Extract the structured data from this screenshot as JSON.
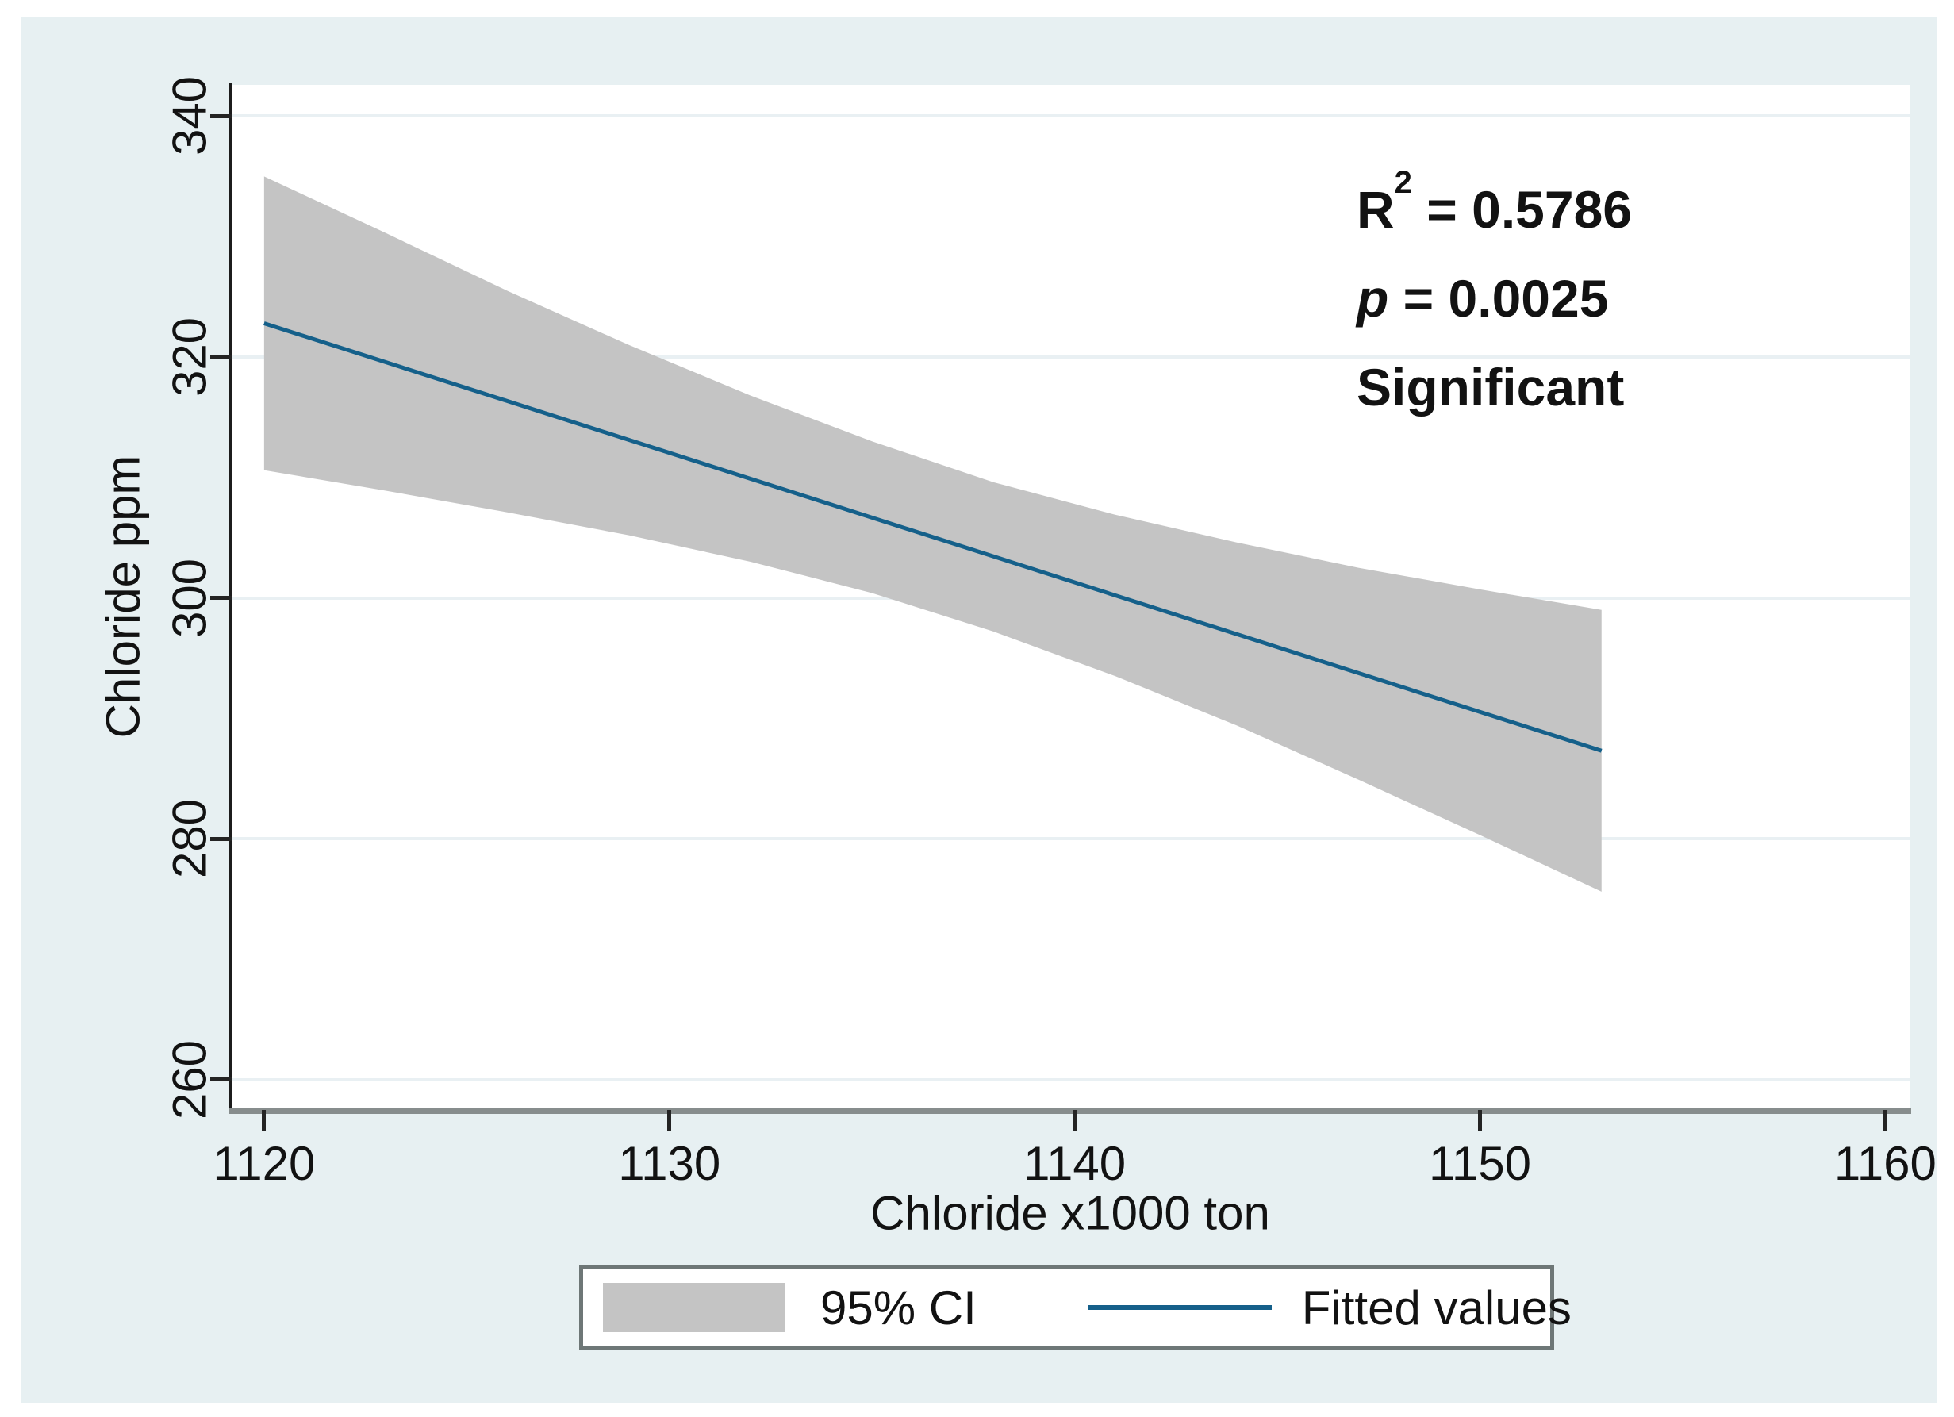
{
  "figure": {
    "background": "#ffffff",
    "panel_background": "#e7f0f2"
  },
  "colors": {
    "fitted_line": "#15608a",
    "ci_band": "#c4c4c4",
    "gridline": "#e9f0f3",
    "y_axis": "#1c1c1c",
    "x_axis": "#878d8d",
    "tick": "#242424",
    "legend_border": "#6e7777",
    "text": "#121212"
  },
  "annotation": {
    "r_base": "R",
    "r_sup": "2",
    "r_rest": " = 0.5786",
    "p_label": "p",
    "p_rest": " = 0.0025",
    "note": "Significant"
  },
  "legend": {
    "ci_label": "95% CI",
    "line_label": "Fitted values"
  },
  "chart_data": {
    "type": "line",
    "title": "",
    "xlabel": "Chloride x1000 ton",
    "ylabel": "Chloride ppm",
    "xlim": [
      1119.2,
      1160.6
    ],
    "ylim": [
      257.6,
      342.6
    ],
    "xticks": [
      1120,
      1130,
      1140,
      1150,
      1160
    ],
    "yticks": [
      260,
      280,
      300,
      320,
      340
    ],
    "grid": "horizontal",
    "legend_position": "bottom-center",
    "stats": {
      "r_squared": 0.5786,
      "p_value": 0.0025,
      "significant": true
    },
    "series": [
      {
        "name": "Fitted values",
        "kind": "line",
        "color": "#15608a",
        "x": [
          1120,
          1153
        ],
        "y": [
          322.8,
          287.3
        ]
      },
      {
        "name": "95% CI",
        "kind": "confidence-band",
        "color": "#c4c4c4",
        "x": [
          1120,
          1123,
          1126,
          1129,
          1132,
          1135,
          1138,
          1141,
          1144,
          1147,
          1150,
          1153
        ],
        "lower": [
          310.6,
          308.9,
          307.1,
          305.2,
          303.0,
          300.4,
          297.2,
          293.5,
          289.4,
          284.9,
          280.3,
          275.6
        ],
        "upper": [
          335.0,
          330.3,
          325.5,
          321.0,
          316.8,
          313.0,
          309.6,
          306.9,
          304.6,
          302.5,
          300.7,
          299.0
        ]
      }
    ]
  }
}
